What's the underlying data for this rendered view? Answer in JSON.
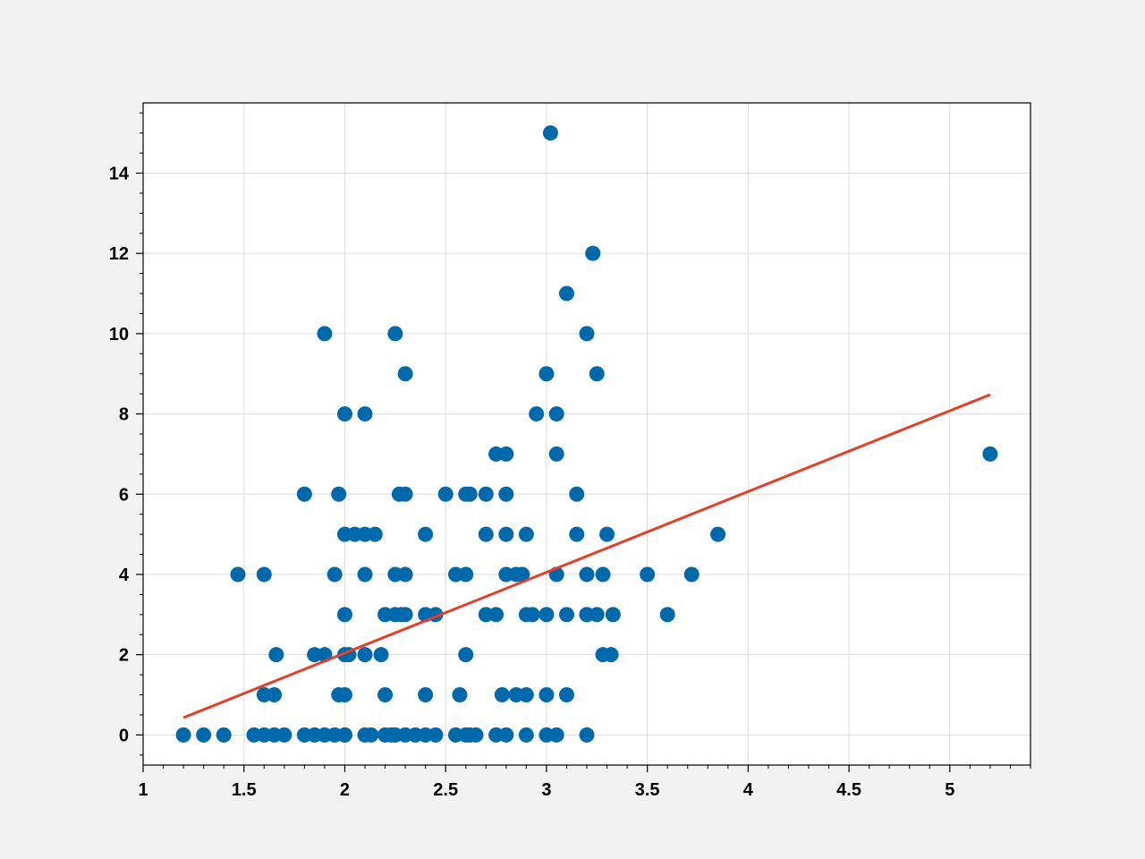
{
  "chart_data": {
    "type": "scatter",
    "title": "",
    "xlabel": "",
    "ylabel": "",
    "xlim": [
      1,
      5.4
    ],
    "ylim": [
      -0.75,
      15.75
    ],
    "grid": true,
    "x_ticks": [
      1,
      1.5,
      2,
      2.5,
      3,
      3.5,
      4,
      4.5,
      5
    ],
    "x_tick_labels": [
      "1",
      "1.5",
      "2",
      "2.5",
      "3",
      "3.5",
      "4",
      "4.5",
      "5"
    ],
    "y_ticks": [
      0,
      2,
      4,
      6,
      8,
      10,
      12,
      14
    ],
    "y_tick_labels": [
      "0",
      "2",
      "4",
      "6",
      "8",
      "10",
      "12",
      "14"
    ],
    "colors": {
      "points": "#0069ab",
      "fit_line": "#e23f2c",
      "grid": "#dcdcdc",
      "figure_background": "#f2f2f2",
      "axes_background": "#ffffff"
    },
    "series": [
      {
        "kind": "scatter",
        "x": [
          1.2,
          1.3,
          1.4,
          1.47,
          1.55,
          1.6,
          1.6,
          1.6,
          1.65,
          1.65,
          1.66,
          1.7,
          1.8,
          1.8,
          1.85,
          1.85,
          1.9,
          1.9,
          1.9,
          1.95,
          1.95,
          1.97,
          1.97,
          2.0,
          2.0,
          2.0,
          2.0,
          2.0,
          2.0,
          2.0,
          2.02,
          2.05,
          2.1,
          2.1,
          2.1,
          2.1,
          2.1,
          2.13,
          2.15,
          2.18,
          2.2,
          2.2,
          2.2,
          2.23,
          2.25,
          2.25,
          2.25,
          2.25,
          2.27,
          2.28,
          2.3,
          2.3,
          2.3,
          2.3,
          2.3,
          2.35,
          2.4,
          2.4,
          2.4,
          2.4,
          2.45,
          2.45,
          2.5,
          2.55,
          2.55,
          2.57,
          2.6,
          2.6,
          2.6,
          2.6,
          2.62,
          2.62,
          2.65,
          2.7,
          2.7,
          2.7,
          2.75,
          2.75,
          2.75,
          2.78,
          2.8,
          2.8,
          2.8,
          2.8,
          2.8,
          2.85,
          2.85,
          2.88,
          2.9,
          2.9,
          2.9,
          2.9,
          2.93,
          2.95,
          3.0,
          3.0,
          3.0,
          3.0,
          3.02,
          3.05,
          3.05,
          3.05,
          3.05,
          3.1,
          3.1,
          3.1,
          3.15,
          3.15,
          3.2,
          3.2,
          3.2,
          3.2,
          3.2,
          3.23,
          3.25,
          3.25,
          3.28,
          3.28,
          3.3,
          3.32,
          3.33,
          3.5,
          3.6,
          3.72,
          3.85,
          5.2
        ],
        "y": [
          0,
          0,
          0,
          4,
          0,
          0,
          1,
          4,
          0,
          1,
          2,
          0,
          0,
          6,
          0,
          2,
          0,
          2,
          10,
          0,
          4,
          1,
          6,
          0,
          1,
          3,
          5,
          8,
          2,
          0,
          2,
          5,
          0,
          2,
          4,
          5,
          8,
          0,
          5,
          2,
          0,
          1,
          3,
          0,
          0,
          3,
          4,
          10,
          6,
          3,
          0,
          3,
          4,
          6,
          9,
          0,
          0,
          1,
          3,
          5,
          0,
          3,
          6,
          0,
          4,
          1,
          0,
          2,
          4,
          6,
          0,
          6,
          0,
          3,
          5,
          6,
          0,
          3,
          7,
          1,
          0,
          4,
          5,
          6,
          7,
          4,
          1,
          4,
          0,
          1,
          3,
          5,
          3,
          8,
          0,
          1,
          3,
          9,
          15,
          4,
          0,
          7,
          8,
          11,
          1,
          3,
          5,
          6,
          3,
          0,
          3,
          4,
          10,
          12,
          3,
          9,
          4,
          2,
          5,
          2,
          3,
          4,
          3,
          4,
          5,
          7
        ],
        "name": ""
      },
      {
        "kind": "line",
        "x": [
          1.2,
          5.2
        ],
        "y": [
          0.43,
          8.48
        ],
        "name": ""
      }
    ]
  }
}
